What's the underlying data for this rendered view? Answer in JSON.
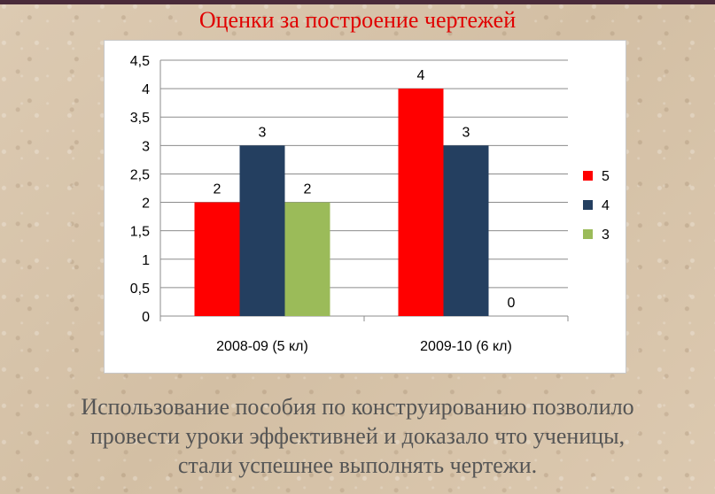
{
  "slide": {
    "title": "Оценки за построение чертежей",
    "caption_lines": [
      "Использование пособия по конструированию позволило",
      "провести уроки эффективней  и доказало что ученицы,",
      "стали успешнее выполнять чертежи."
    ]
  },
  "chart_data": {
    "type": "bar",
    "categories": [
      "2008-09 (5 кл)",
      "2009-10 (6 кл)"
    ],
    "series": [
      {
        "name": "5",
        "color": "#ff0000",
        "values": [
          2,
          4
        ]
      },
      {
        "name": "4",
        "color": "#243f60",
        "values": [
          3,
          3
        ]
      },
      {
        "name": "3",
        "color": "#9bbb59",
        "values": [
          2,
          0
        ]
      }
    ],
    "ylim": [
      0,
      4.5
    ],
    "y_ticks": [
      "0",
      "0,5",
      "1",
      "1,5",
      "2",
      "2,5",
      "3",
      "3,5",
      "4",
      "4,5"
    ],
    "y_tick_values": [
      0,
      0.5,
      1,
      1.5,
      2,
      2.5,
      3,
      3.5,
      4,
      4.5
    ],
    "data_labels": [
      [
        "2",
        "3",
        "2"
      ],
      [
        "4",
        "3",
        "0"
      ]
    ],
    "grid": true,
    "legend_position": "right"
  }
}
